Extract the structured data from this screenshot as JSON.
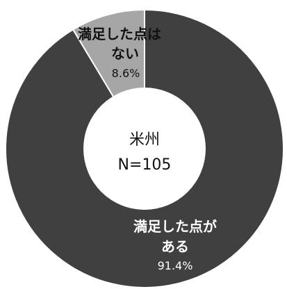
{
  "chart_data": {
    "type": "pie",
    "center": {
      "title": "米州",
      "n_label": "N=105"
    },
    "slices": [
      {
        "line1": "満足した点が",
        "line2": "ある",
        "percent_label": "91.4%",
        "value": 91.4
      },
      {
        "line1": "満足した点は",
        "line2": "ない",
        "percent_label": "8.6%",
        "value": 8.6
      }
    ],
    "colors": {
      "dark": "#404040",
      "light": "#a6a6a6",
      "label_on_dark": "#ffffff",
      "label_on_light": "#111111"
    }
  }
}
